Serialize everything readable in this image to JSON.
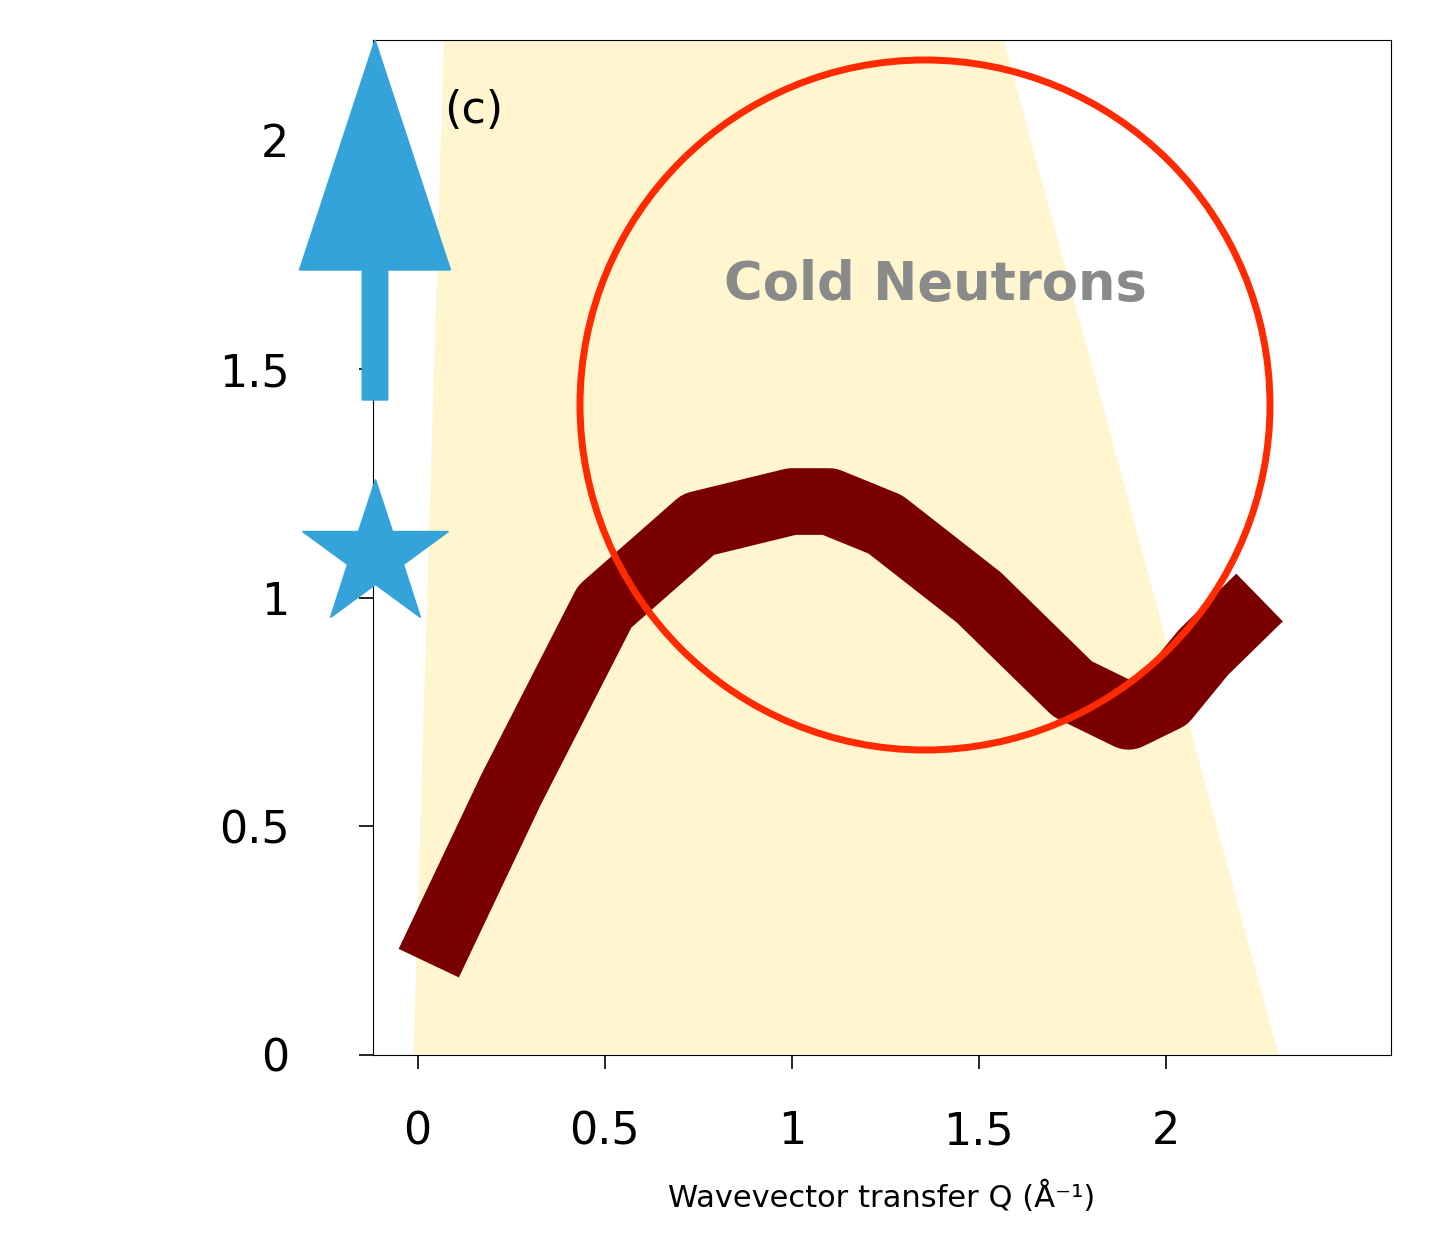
{
  "chart_data": {
    "type": "line",
    "title": "(c)",
    "x_label": "Wavevector transfer Q (Å⁻¹)",
    "annotations": [
      "Cold Neutrons"
    ],
    "x": [
      0.03,
      0.25,
      0.5,
      0.75,
      1.0,
      1.1,
      1.25,
      1.5,
      1.75,
      1.9,
      2.0,
      2.1,
      2.25
    ],
    "values": [
      0.2,
      0.58,
      0.98,
      1.16,
      1.21,
      1.21,
      1.16,
      1.0,
      0.8,
      0.74,
      0.78,
      0.88,
      1.0
    ],
    "color": "#7a0000",
    "xlim": [
      -0.12,
      2.6
    ],
    "ylim": [
      0,
      2.22
    ],
    "xticks": [
      0,
      0.5,
      1,
      1.5,
      2
    ],
    "yticks": [
      0,
      0.5,
      1,
      1.5,
      2
    ]
  }
}
